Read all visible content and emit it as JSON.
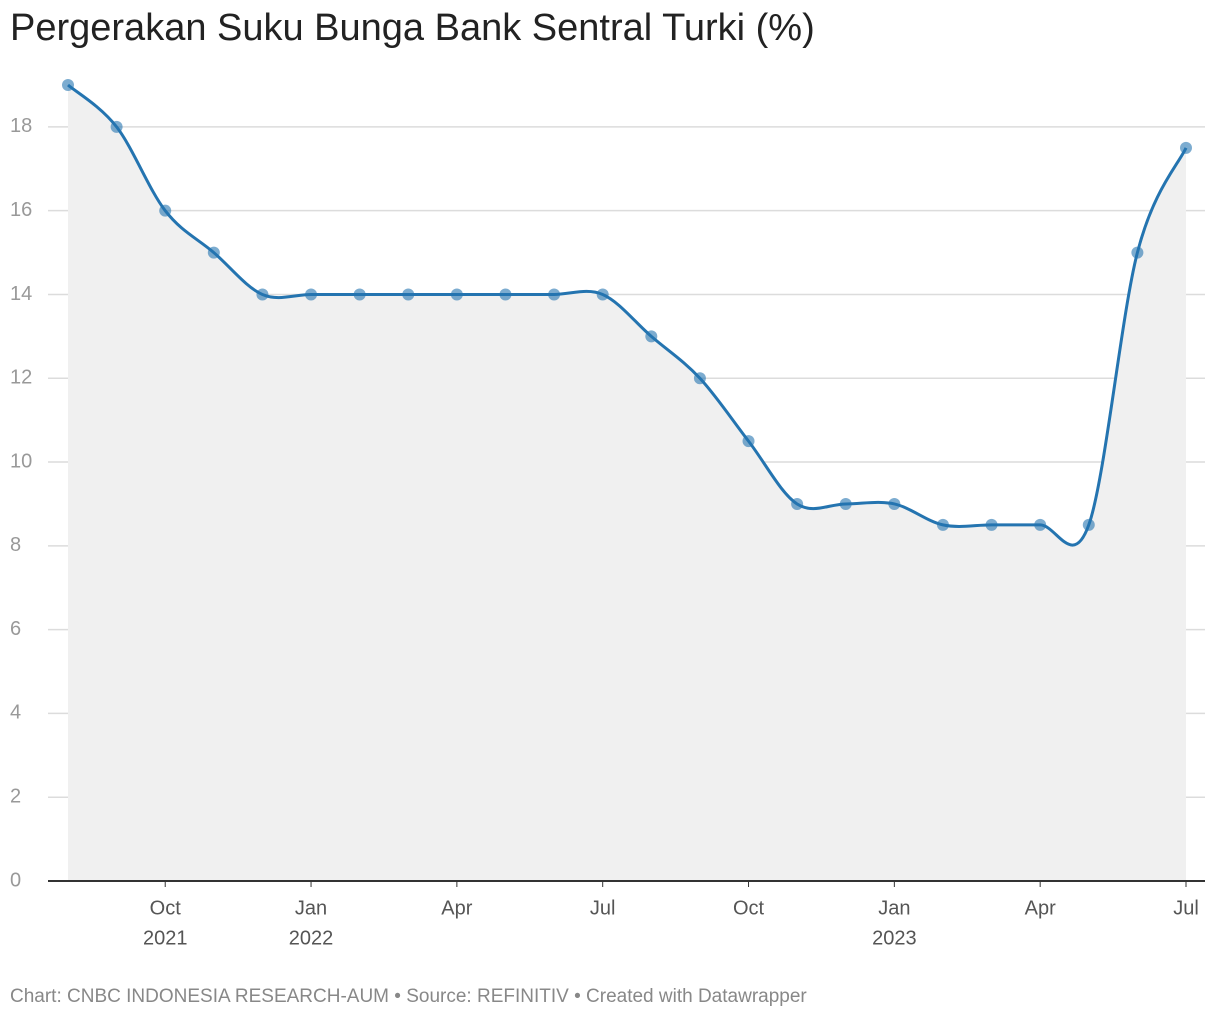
{
  "chart_data": {
    "type": "line",
    "title": "Pergerakan Suku Bunga Bank Sentral Turki (%)",
    "source": "Chart: CNBC INDONESIA RESEARCH-AUM • Source: REFINITIV • Created with Datawrapper",
    "x": [
      "2021-08",
      "2021-09",
      "2021-10",
      "2021-11",
      "2021-12",
      "2022-01",
      "2022-02",
      "2022-03",
      "2022-04",
      "2022-05",
      "2022-06",
      "2022-07",
      "2022-08",
      "2022-09",
      "2022-10",
      "2022-11",
      "2022-12",
      "2023-01",
      "2023-02",
      "2023-03",
      "2023-04",
      "2023-05",
      "2023-06",
      "2023-07"
    ],
    "series": [
      {
        "name": "Suku Bunga",
        "color": "#2474b0",
        "values": [
          19,
          18,
          16,
          15,
          14,
          14,
          14,
          14,
          14,
          14,
          14,
          14,
          13,
          12,
          10.5,
          9,
          9,
          9,
          8.5,
          8.5,
          8.5,
          8.5,
          15,
          17.5
        ]
      }
    ],
    "ylim": [
      0,
      19
    ],
    "yticks": [
      0,
      2,
      4,
      6,
      8,
      10,
      12,
      14,
      16,
      18
    ],
    "xticks": [
      {
        "value": "2021-10",
        "label": "Oct",
        "year": "2021"
      },
      {
        "value": "2022-01",
        "label": "Jan",
        "year": "2022"
      },
      {
        "value": "2022-04",
        "label": "Apr"
      },
      {
        "value": "2022-07",
        "label": "Jul"
      },
      {
        "value": "2022-10",
        "label": "Oct"
      },
      {
        "value": "2023-01",
        "label": "Jan",
        "year": "2023"
      },
      {
        "value": "2023-04",
        "label": "Apr"
      },
      {
        "value": "2023-07",
        "label": "Jul"
      }
    ],
    "grid": true,
    "area_color": "#f0f0f0"
  }
}
